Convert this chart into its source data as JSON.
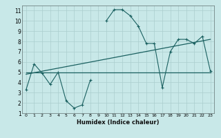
{
  "title": "",
  "xlabel": "Humidex (Indice chaleur)",
  "ylabel": "",
  "bg_color": "#c8e8e8",
  "grid_color": "#aacece",
  "line_color": "#1a6060",
  "x_data": [
    0,
    1,
    2,
    3,
    4,
    5,
    6,
    7,
    8,
    9,
    10,
    11,
    12,
    13,
    14,
    15,
    16,
    17,
    18,
    19,
    20,
    21,
    22,
    23
  ],
  "y_main": [
    3.3,
    5.8,
    4.9,
    3.8,
    5.0,
    2.2,
    1.5,
    1.8,
    4.2,
    null,
    10.0,
    11.1,
    11.1,
    10.5,
    9.5,
    7.8,
    7.8,
    3.5,
    7.0,
    8.2,
    8.2,
    7.8,
    8.5,
    5.1
  ],
  "y_reg1_start": 5.0,
  "y_reg1_end": 5.0,
  "y_reg2_start": 4.8,
  "y_reg2_end": 8.2,
  "xlim": [
    -0.5,
    23.5
  ],
  "ylim": [
    1,
    11.5
  ],
  "yticks": [
    1,
    2,
    3,
    4,
    5,
    6,
    7,
    8,
    9,
    10,
    11
  ],
  "xticks": [
    0,
    1,
    2,
    3,
    4,
    5,
    6,
    7,
    8,
    9,
    10,
    11,
    12,
    13,
    14,
    15,
    16,
    17,
    18,
    19,
    20,
    21,
    22,
    23
  ]
}
